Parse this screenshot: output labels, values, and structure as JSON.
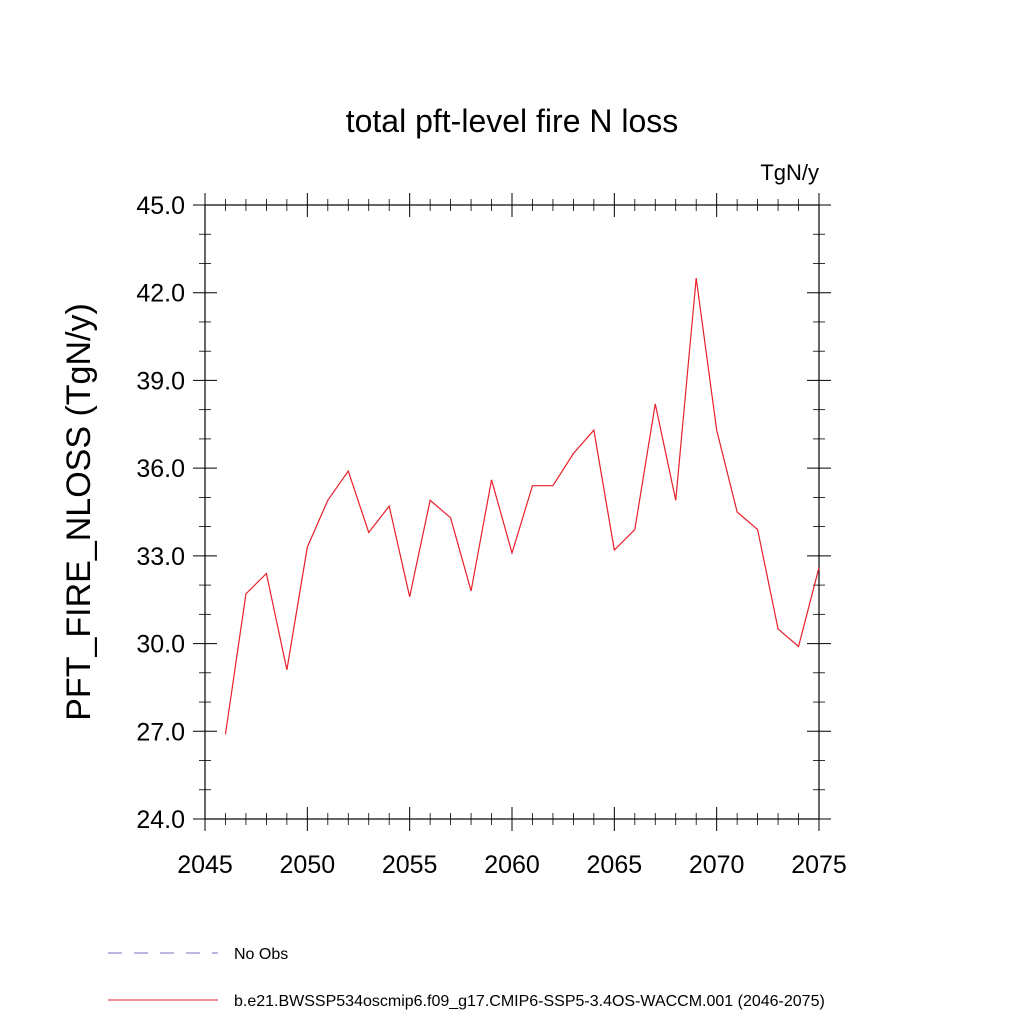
{
  "chart_data": {
    "type": "line",
    "title": "total pft-level fire N loss",
    "units": "TgN/y",
    "ylabel": "PFT_FIRE_NLOSS  (TgN/y)",
    "xlim": [
      2045,
      2075
    ],
    "ylim": [
      24.0,
      45.0
    ],
    "x_ticks": [
      2045,
      2050,
      2055,
      2060,
      2065,
      2070,
      2075
    ],
    "x_tick_labels": [
      "2045",
      "2050",
      "2055",
      "2060",
      "2065",
      "2070",
      "2075"
    ],
    "y_ticks": [
      24.0,
      27.0,
      30.0,
      33.0,
      36.0,
      39.0,
      42.0,
      45.0
    ],
    "y_tick_labels": [
      "24.0",
      "27.0",
      "30.0",
      "33.0",
      "36.0",
      "39.0",
      "42.0",
      "45.0"
    ],
    "grid": false,
    "legend_position": "bottom-left",
    "series": [
      {
        "name": "b.e21.BWSSP534oscmip6.f09_g17.CMIP6-SSP5-3.4OS-WACCM.001 (2046-2075)",
        "color": "#e8202a",
        "style": "solid",
        "x": [
          2046,
          2047,
          2048,
          2049,
          2050,
          2051,
          2052,
          2053,
          2054,
          2055,
          2056,
          2057,
          2058,
          2059,
          2060,
          2061,
          2062,
          2063,
          2064,
          2065,
          2066,
          2067,
          2068,
          2069,
          2070,
          2071,
          2072,
          2073,
          2074,
          2075
        ],
        "values": [
          26.9,
          31.7,
          32.4,
          29.1,
          33.3,
          34.9,
          35.9,
          33.8,
          34.7,
          31.6,
          34.9,
          34.3,
          31.8,
          35.6,
          33.1,
          35.4,
          35.4,
          36.5,
          37.3,
          33.2,
          33.9,
          38.2,
          34.9,
          42.5,
          37.3,
          34.5,
          33.9,
          30.5,
          29.9,
          32.6
        ]
      },
      {
        "name": "No Obs",
        "color": "#7b6fc4",
        "style": "dashed",
        "x": [],
        "values": []
      }
    ]
  }
}
